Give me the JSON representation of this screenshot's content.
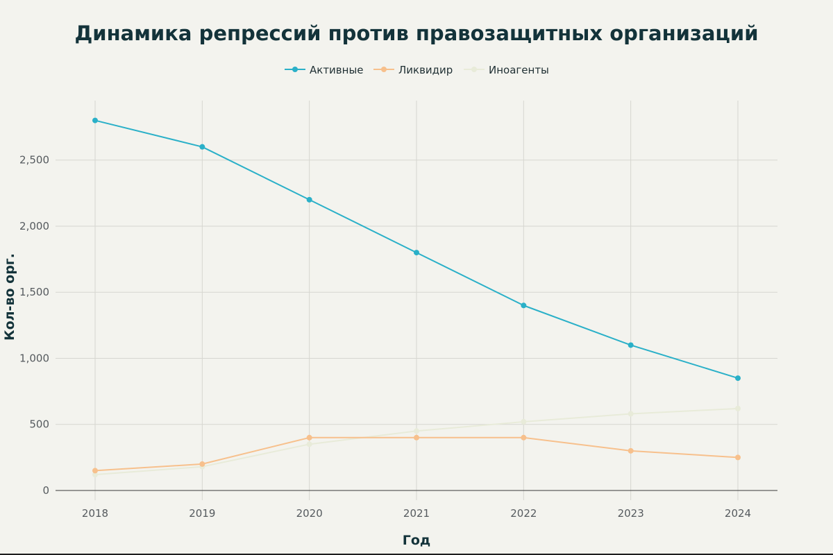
{
  "colors": {
    "background": "#f3f3ee",
    "title": "#13333a"
  },
  "chart_data": {
    "type": "line",
    "title": "Динамика репрессий против правозащитных организаций",
    "xlabel": "Год",
    "ylabel": "Кол-во орг.",
    "x": [
      2018,
      2019,
      2020,
      2021,
      2022,
      2023,
      2024
    ],
    "ylim": [
      0,
      2950
    ],
    "y_ticks": [
      0,
      500,
      1000,
      1500,
      2000,
      2500
    ],
    "y_tick_labels": [
      "0",
      "500",
      "1,000",
      "1,500",
      "2,000",
      "2,500"
    ],
    "grid": true,
    "legend_position": "top-center",
    "series": [
      {
        "name": "Активные",
        "color": "#2ab0c8",
        "values": [
          2800,
          2600,
          2200,
          1800,
          1400,
          1100,
          850
        ]
      },
      {
        "name": "Ликвидир",
        "color": "#f7c08c",
        "values": [
          150,
          200,
          400,
          400,
          400,
          300,
          250
        ]
      },
      {
        "name": "Иноагенты",
        "color": "#e8ebd9",
        "values": [
          120,
          180,
          350,
          450,
          520,
          580,
          620
        ]
      }
    ]
  }
}
